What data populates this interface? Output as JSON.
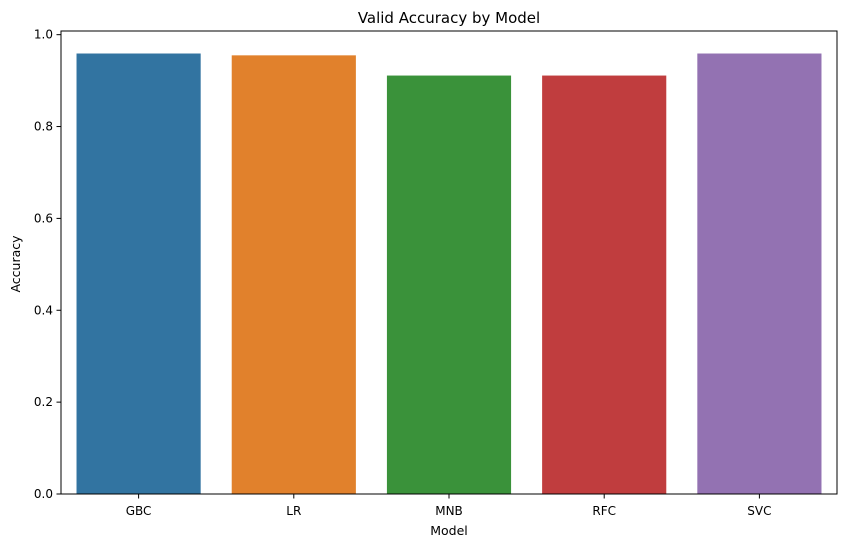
{
  "chart_data": {
    "type": "bar",
    "title": "Valid Accuracy by Model",
    "xlabel": "Model",
    "ylabel": "Accuracy",
    "categories": [
      "GBC",
      "LR",
      "MNB",
      "RFC",
      "SVC"
    ],
    "values": [
      0.959,
      0.955,
      0.911,
      0.911,
      0.959
    ],
    "colors": [
      "#3274a1",
      "#e1812c",
      "#3a923a",
      "#c03d3e",
      "#9372b2"
    ],
    "ylim": [
      0,
      1.008
    ],
    "yticks": [
      0.0,
      0.2,
      0.4,
      0.6,
      0.8,
      1.0
    ],
    "ytick_labels": [
      "0.0",
      "0.2",
      "0.4",
      "0.6",
      "0.8",
      "1.0"
    ],
    "grid": false,
    "legend": "none"
  }
}
